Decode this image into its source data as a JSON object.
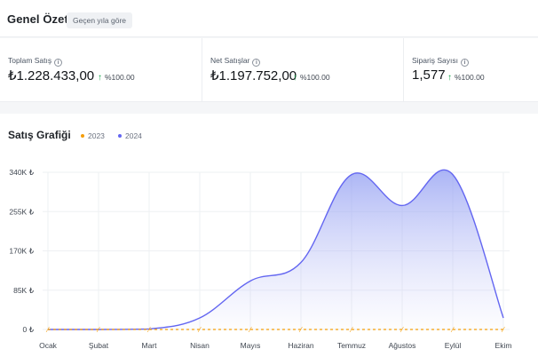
{
  "header": {
    "title": "Genel Özet",
    "filter_chip": "Geçen yıla göre"
  },
  "stats": [
    {
      "label": "Toplam Satış",
      "value": "₺1.228.433,00",
      "delta": "%100.00"
    },
    {
      "label": "Net Satışlar",
      "value": "₺1.197.752,00",
      "delta": "%100.00"
    },
    {
      "label": "Sipariş Sayısı",
      "value": "1,577",
      "delta": "%100.00"
    }
  ],
  "colors": {
    "up_arrow": "#16a34a",
    "series_2023": "#f59e0b",
    "series_2024": "#6366f1"
  },
  "chart": {
    "title": "Satış Grafiği",
    "legend": [
      "2023",
      "2024"
    ]
  },
  "chart_data": {
    "type": "area",
    "title": "Satış Grafiği",
    "categories": [
      "Ocak",
      "Şubat",
      "Mart",
      "Nisan",
      "Mayıs",
      "Haziran",
      "Temmuz",
      "Ağustos",
      "Eylül",
      "Ekim"
    ],
    "y_ticks": [
      "0 ₺",
      "85K ₺",
      "170K ₺",
      "255K ₺",
      "340K ₺"
    ],
    "ylim": [
      0,
      340000
    ],
    "grid": true,
    "legend_position": "top-left",
    "series": [
      {
        "name": "2023",
        "values": [
          0,
          0,
          0,
          0,
          0,
          0,
          0,
          0,
          0,
          0
        ]
      },
      {
        "name": "2024",
        "values": [
          0,
          0,
          1000,
          25000,
          105000,
          145000,
          335000,
          268000,
          335000,
          25000
        ]
      }
    ]
  }
}
